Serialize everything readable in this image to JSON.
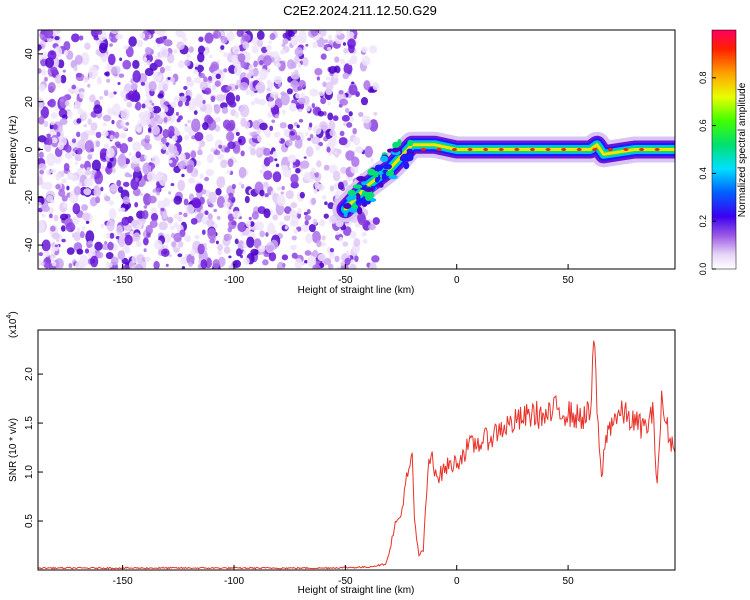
{
  "title": "C2E2.2024.211.12.50.G29",
  "chart_data": [
    {
      "type": "heatmap",
      "xlabel": "Height of straight line (km)",
      "ylabel": "Frequency (Hz)",
      "xlim": [
        -188,
        98
      ],
      "ylim": [
        -50,
        50
      ],
      "x_ticks": [
        -150,
        -100,
        -50,
        0,
        50
      ],
      "x_tick_labels": [
        "-150",
        "-100",
        "-50",
        "0",
        "50"
      ],
      "y_ticks": [
        -40,
        -20,
        0,
        20,
        40
      ],
      "y_tick_labels": [
        "-40",
        "-20",
        "0",
        "20",
        "40"
      ],
      "noise_region_x": [
        -188,
        -45
      ],
      "signal_track": [
        {
          "x": -50,
          "y": -25
        },
        {
          "x": -40,
          "y": -15
        },
        {
          "x": -30,
          "y": -8
        },
        {
          "x": -25,
          "y": -3
        },
        {
          "x": -20,
          "y": 2
        },
        {
          "x": -10,
          "y": 2
        },
        {
          "x": 0,
          "y": 0
        },
        {
          "x": 20,
          "y": 0
        },
        {
          "x": 40,
          "y": 0
        },
        {
          "x": 60,
          "y": 0
        },
        {
          "x": 63,
          "y": 2
        },
        {
          "x": 66,
          "y": -2
        },
        {
          "x": 80,
          "y": 0
        },
        {
          "x": 98,
          "y": 0
        }
      ],
      "colorbar": {
        "label": "Normalized spectral amplitude",
        "ticks": [
          0.0,
          0.2,
          0.4,
          0.6,
          0.8
        ],
        "tick_labels": [
          "0.0",
          "0.2",
          "0.4",
          "0.6",
          "0.8"
        ],
        "range": [
          0,
          1
        ]
      },
      "grid": false
    },
    {
      "type": "line",
      "xlabel": "Height of straight line (km)",
      "ylabel": "SNR (10 * v/v)",
      "y_multiplier_label": "(x10",
      "y_multiplier_exp": "4",
      "y_multiplier_close": ")",
      "xlim": [
        -188,
        98
      ],
      "ylim": [
        0,
        2.45
      ],
      "x_ticks": [
        -150,
        -100,
        -50,
        0,
        50
      ],
      "x_tick_labels": [
        "-150",
        "-100",
        "-50",
        "0",
        "50"
      ],
      "y_ticks": [
        0.5,
        1.0,
        1.5,
        2.0
      ],
      "y_tick_labels": [
        "0.5",
        "1.0",
        "1.5",
        "2.0"
      ],
      "color": "#e8332a",
      "series": [
        {
          "x": [
            -188,
            -150,
            -100,
            -60,
            -40,
            -32,
            -30,
            -28,
            -25,
            -23,
            -21,
            -20,
            -19,
            -17,
            -15,
            -13,
            -11,
            -10,
            -8,
            -5,
            0,
            5,
            10,
            15,
            20,
            25,
            30,
            35,
            40,
            45,
            50,
            55,
            60,
            62,
            63,
            64,
            65,
            67,
            70,
            75,
            80,
            85,
            88,
            90,
            92,
            95,
            98
          ],
          "values": [
            0.02,
            0.02,
            0.02,
            0.02,
            0.03,
            0.06,
            0.2,
            0.45,
            0.55,
            0.9,
            1.0,
            1.2,
            0.5,
            0.15,
            0.2,
            1.0,
            1.2,
            1.05,
            0.95,
            1.05,
            1.1,
            1.25,
            1.3,
            1.35,
            1.45,
            1.5,
            1.55,
            1.6,
            1.55,
            1.65,
            1.6,
            1.55,
            1.6,
            2.4,
            1.6,
            1.2,
            0.95,
            1.35,
            1.55,
            1.6,
            1.5,
            1.45,
            1.6,
            0.9,
            1.7,
            1.4,
            1.2
          ]
        }
      ],
      "grid": false
    }
  ]
}
